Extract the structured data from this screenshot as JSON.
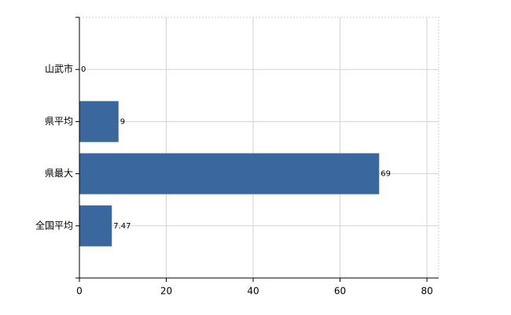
{
  "chart_data": {
    "type": "bar",
    "orientation": "horizontal",
    "categories": [
      "山武市",
      "県平均",
      "県最大",
      "全国平均"
    ],
    "values": [
      0,
      9,
      69,
      7.47
    ],
    "color": "#3b679f",
    "xlim": [
      0,
      82.7
    ],
    "xticks": [
      0,
      20,
      40,
      60,
      80
    ],
    "grid": true
  }
}
